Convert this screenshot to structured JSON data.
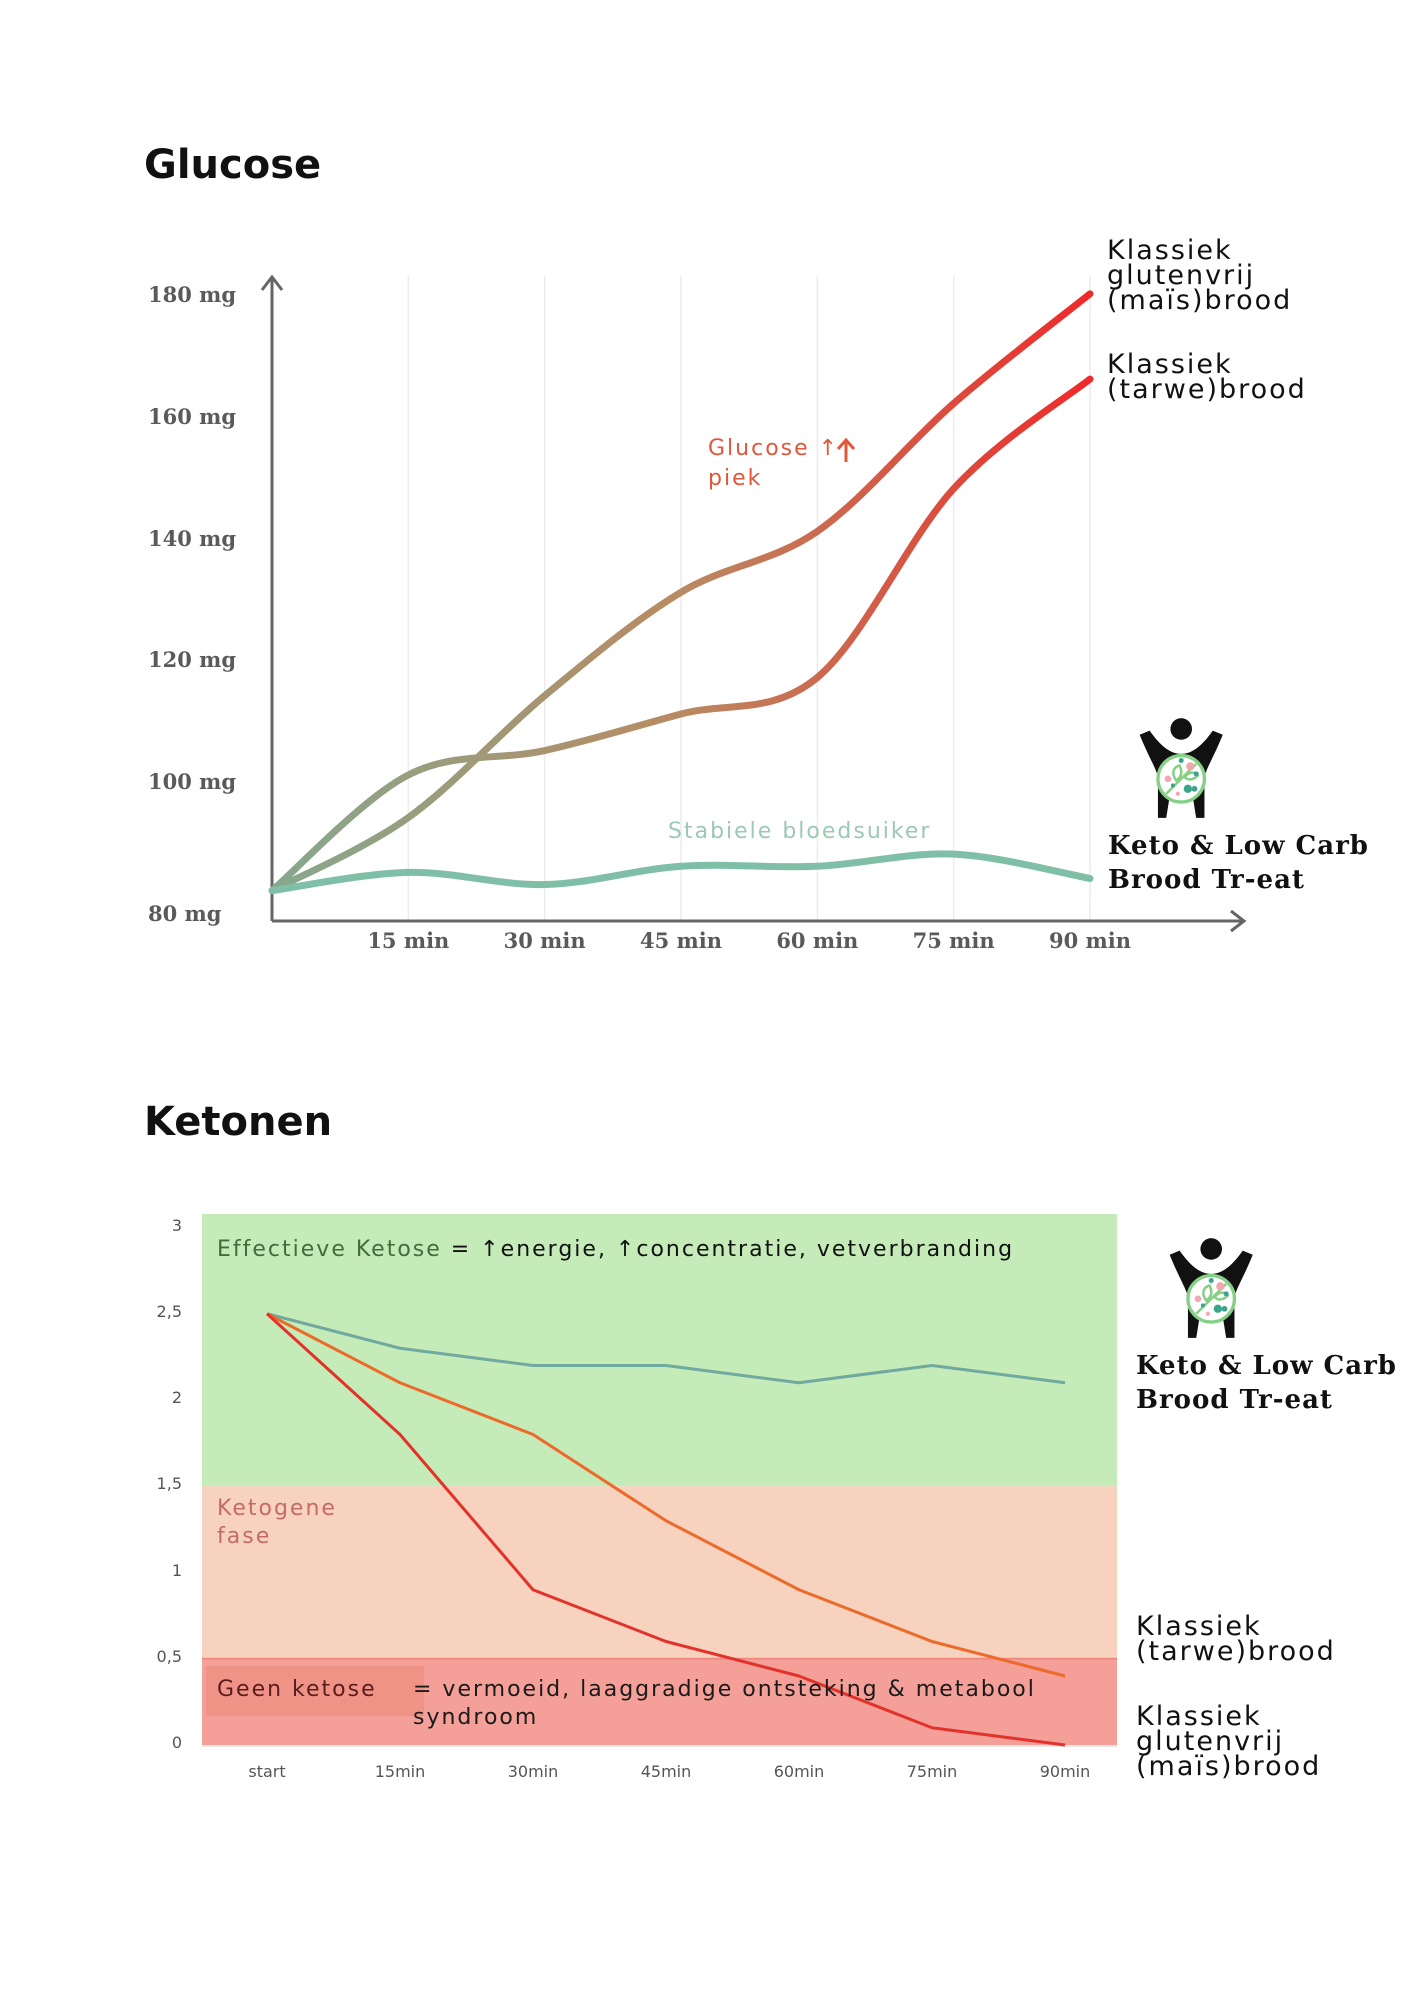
{
  "chart_data": [
    {
      "type": "line",
      "title": "Glucose",
      "xlabel": "",
      "ylabel": "",
      "x": [
        0,
        15,
        30,
        45,
        60,
        75,
        90
      ],
      "x_tick_labels": [
        "15 min",
        "30 min",
        "45 min",
        "60 min",
        "75 min",
        "90 min"
      ],
      "y_tick_labels": [
        "180 mg",
        "160 mg",
        "140 mg",
        "120 mg",
        "100 mg",
        "80 mg"
      ],
      "ylim": [
        80,
        185
      ],
      "grid": "vertical",
      "series": [
        {
          "name": "Klassiek glutenvrij (maïs)brood",
          "values": [
            84,
            96,
            116,
            133,
            143,
            164,
            182
          ]
        },
        {
          "name": "Klassiek (tarwe)brood",
          "values": [
            84,
            103,
            107,
            113,
            119,
            150,
            168
          ]
        },
        {
          "name": "Keto & Low Carb Brood Tr-eat",
          "values": [
            84,
            87,
            85,
            88,
            88,
            90,
            86
          ]
        }
      ],
      "annotations": {
        "peak": [
          "Glucose ↑",
          "piek"
        ],
        "stable": "Stabiele bloedsuiker"
      },
      "labels": {
        "glutenvrij": [
          "Klassiek",
          "glutenvrij",
          "(maïs)brood"
        ],
        "tarwe": [
          "Klassiek",
          "(tarwe)brood"
        ],
        "keto": [
          "Keto & Low Carb",
          "Brood Tr-eat"
        ]
      },
      "colors": {
        "start": "#86a88e",
        "mid": "#b98a62",
        "end": "#ee2a2a",
        "keto": "#7fbfa8"
      }
    },
    {
      "type": "line",
      "title": "Ketonen",
      "xlabel": "",
      "ylabel": "",
      "categories": [
        "start",
        "15min",
        "30min",
        "45min",
        "60min",
        "75min",
        "90min"
      ],
      "y_tick_labels": [
        "3",
        "2,5",
        "2",
        "1,5",
        "1",
        "0,5",
        "0"
      ],
      "ylim": [
        0,
        3
      ],
      "series": [
        {
          "name": "Keto & Low Carb Brood Tr-eat",
          "values": [
            2.5,
            2.3,
            2.2,
            2.2,
            2.1,
            2.2,
            2.1
          ],
          "color": "#6fa9a0"
        },
        {
          "name": "Klassiek (tarwe)brood",
          "values": [
            2.5,
            2.1,
            1.8,
            1.3,
            0.9,
            0.6,
            0.4
          ],
          "color": "#ec6a2a"
        },
        {
          "name": "Klassiek glutenvrij (maïs)brood",
          "values": [
            2.5,
            1.8,
            0.9,
            0.6,
            0.4,
            0.1,
            0.0
          ],
          "color": "#e3322a"
        }
      ],
      "bands": [
        {
          "name": "Effectieve Ketose",
          "from": 1.5,
          "to": 3,
          "color": "#c5ebb8"
        },
        {
          "name": "Ketogene fase",
          "from": 0.5,
          "to": 1.5,
          "color": "#f7d3bf"
        },
        {
          "name": "Geen ketose",
          "from": 0,
          "to": 0.5,
          "color": "#f4a099"
        }
      ],
      "zone_text": {
        "effectief": "Effectieve Ketose",
        "effectief_desc": "= ↑energie, ↑concentratie, vetverbranding",
        "ketogeen": [
          "Ketogene",
          "fase"
        ],
        "geen": "Geen ketose",
        "geen_desc": [
          "= vermoeid, laaggradige ontsteking & metabool",
          "syndroom"
        ]
      },
      "labels": {
        "keto": [
          "Keto & Low Carb",
          "Brood Tr-eat"
        ],
        "tarwe": [
          "Klassiek",
          "(tarwe)brood"
        ],
        "glutenvrij": [
          "Klassiek",
          "glutenvrij",
          "(maïs)brood"
        ]
      }
    }
  ]
}
